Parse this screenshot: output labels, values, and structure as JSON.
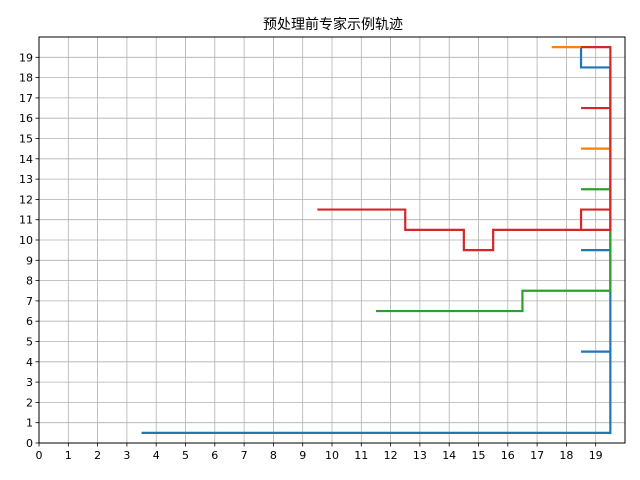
{
  "chart_data": {
    "type": "line",
    "title": "预处理前专家示例轨迹",
    "xlabel": "",
    "ylabel": "",
    "xlim": [
      0,
      20
    ],
    "ylim": [
      0,
      20
    ],
    "grid": true,
    "x_ticks": [
      0,
      1,
      2,
      3,
      4,
      5,
      6,
      7,
      8,
      9,
      10,
      11,
      12,
      13,
      14,
      15,
      16,
      17,
      18,
      19
    ],
    "y_ticks": [
      0,
      1,
      2,
      3,
      4,
      5,
      6,
      7,
      8,
      9,
      10,
      11,
      12,
      13,
      14,
      15,
      16,
      17,
      18,
      19
    ],
    "series": [
      {
        "color": "#1f77b4",
        "points": [
          [
            3.5,
            0.5
          ],
          [
            19.5,
            0.5
          ],
          [
            19.5,
            4.5
          ],
          [
            18.5,
            4.5
          ],
          [
            19.5,
            4.5
          ],
          [
            19.5,
            9.5
          ],
          [
            18.5,
            9.5
          ],
          [
            19.5,
            9.5
          ],
          [
            19.5,
            18.5
          ],
          [
            18.5,
            18.5
          ],
          [
            18.5,
            19.5
          ]
        ]
      },
      {
        "color": "#ff7f0e",
        "points": [
          [
            17.5,
            19.5
          ],
          [
            18.5,
            19.5
          ]
        ]
      },
      {
        "color": "#ff7f0e",
        "points": [
          [
            18.5,
            14.5
          ],
          [
            19.5,
            14.5
          ]
        ]
      },
      {
        "color": "#2ca02c",
        "points": [
          [
            11.5,
            6.5
          ],
          [
            16.5,
            6.5
          ],
          [
            16.5,
            7.5
          ],
          [
            19.5,
            7.5
          ],
          [
            19.5,
            10.5
          ]
        ]
      },
      {
        "color": "#2ca02c",
        "points": [
          [
            18.5,
            12.5
          ],
          [
            19.5,
            12.5
          ]
        ]
      },
      {
        "color": "#d62728",
        "points": [
          [
            9.5,
            11.5
          ],
          [
            12.5,
            11.5
          ],
          [
            12.5,
            10.5
          ],
          [
            14.5,
            10.5
          ],
          [
            14.5,
            9.5
          ],
          [
            15.5,
            9.5
          ],
          [
            15.5,
            10.5
          ],
          [
            18.5,
            10.5
          ],
          [
            18.5,
            11.5
          ],
          [
            19.5,
            11.5
          ],
          [
            19.5,
            10.5
          ],
          [
            18.5,
            10.5
          ]
        ]
      },
      {
        "color": "#d62728",
        "points": [
          [
            19.5,
            11.5
          ],
          [
            19.5,
            19.5
          ],
          [
            18.5,
            19.5
          ]
        ]
      },
      {
        "color": "#d62728",
        "points": [
          [
            18.5,
            16.5
          ],
          [
            19.5,
            16.5
          ]
        ]
      }
    ]
  }
}
